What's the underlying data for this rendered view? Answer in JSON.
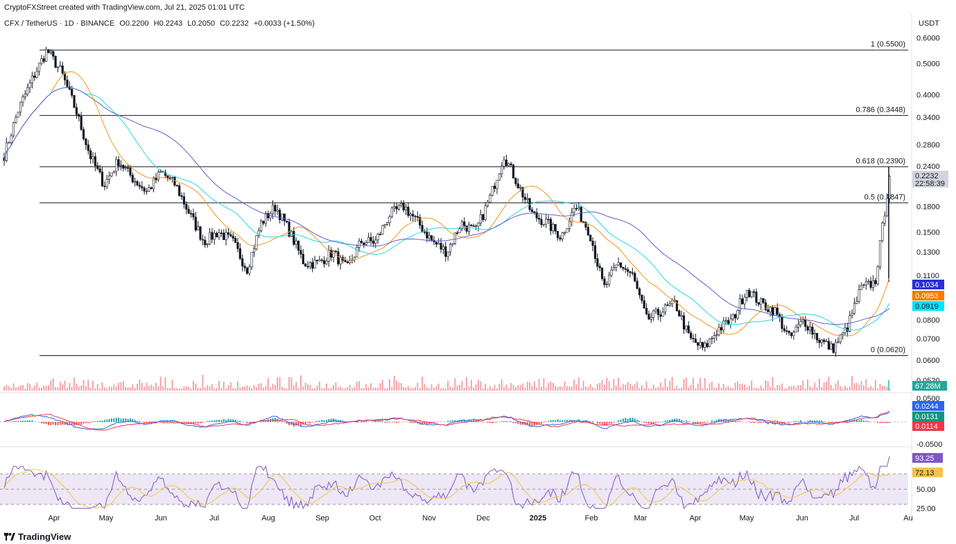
{
  "header": {
    "credit": "CryptoFXStreet created with TradingView.com, Jul 21, 2025 01:01 UTC",
    "symbol": "CFX / TetherUS · 1D · BINANCE",
    "open": "O0.2200",
    "high": "H0.2243",
    "low": "L0.2050",
    "close": "C0.2232",
    "change": "+0.0033 (+1.50%)",
    "currency": "USDT"
  },
  "footer": {
    "brand": "TradingView"
  },
  "colors": {
    "candle": "#131722",
    "ma_blue": "#5b5fd6",
    "ma_orange": "#f7931a",
    "ma_cyan": "#26d7e6",
    "fib": "#131722",
    "volume": "#f2a3a8",
    "macd_line": "#2962ff",
    "signal_line": "#f23645",
    "rsi_line": "#7e57c2",
    "rsi_ma": "#f5c542",
    "rsi_band": "#ede7f6"
  },
  "chart_data": {
    "type": "candlestick",
    "title": "CFX / TetherUS · 1D · BINANCE",
    "y_scale": "log",
    "y_ticks": [
      "0.6000",
      "0.5000",
      "0.4000",
      "0.3400",
      "0.2800",
      "0.2400",
      "0.1800",
      "0.1500",
      "0.1300",
      "0.1100",
      "0.0800",
      "0.0700",
      "0.0600",
      "0.0520"
    ],
    "x_ticks": [
      "Apr",
      "May",
      "Jun",
      "Jul",
      "Aug",
      "Sep",
      "Oct",
      "Nov",
      "Dec",
      "2025",
      "Feb",
      "Mar",
      "Apr",
      "May",
      "Jun",
      "Jul",
      "Au"
    ],
    "fib_levels": [
      {
        "label": "1 (0.5500)",
        "value": 0.55
      },
      {
        "label": "0.786 (0.3448)",
        "value": 0.3448
      },
      {
        "label": "0.618 (0.2390)",
        "value": 0.239
      },
      {
        "label": "0.5 (0.1847)",
        "value": 0.1847
      },
      {
        "label": "0 (0.0620)",
        "value": 0.062
      }
    ],
    "price_path": [
      [
        "Mar",
        0.26
      ],
      [
        "Mar",
        0.36
      ],
      [
        "Mar",
        0.45
      ],
      [
        "Mar",
        0.55
      ],
      [
        "Apr",
        0.47
      ],
      [
        "Apr",
        0.36
      ],
      [
        "Apr",
        0.26
      ],
      [
        "Apr",
        0.21
      ],
      [
        "Apr",
        0.25
      ],
      [
        "May",
        0.22
      ],
      [
        "May",
        0.2
      ],
      [
        "May",
        0.23
      ],
      [
        "Jun",
        0.21
      ],
      [
        "Jun",
        0.17
      ],
      [
        "Jun",
        0.14
      ],
      [
        "Jun",
        0.15
      ],
      [
        "Jul",
        0.14
      ],
      [
        "Jul",
        0.115
      ],
      [
        "Jul",
        0.16
      ],
      [
        "Jul",
        0.18
      ],
      [
        "Aug",
        0.15
      ],
      [
        "Aug",
        0.12
      ],
      [
        "Aug",
        0.12
      ],
      [
        "Aug",
        0.13
      ],
      [
        "Sep",
        0.115
      ],
      [
        "Sep",
        0.14
      ],
      [
        "Sep",
        0.14
      ],
      [
        "Oct",
        0.17
      ],
      [
        "Oct",
        0.18
      ],
      [
        "Oct",
        0.16
      ],
      [
        "Oct",
        0.14
      ],
      [
        "Nov",
        0.13
      ],
      [
        "Nov",
        0.16
      ],
      [
        "Nov",
        0.15
      ],
      [
        "Nov",
        0.19
      ],
      [
        "Dec",
        0.26
      ],
      [
        "Dec",
        0.21
      ],
      [
        "Dec",
        0.17
      ],
      [
        "Dec",
        0.16
      ],
      [
        "2025",
        0.145
      ],
      [
        "2025",
        0.18
      ],
      [
        "2025",
        0.15
      ],
      [
        "Feb",
        0.1
      ],
      [
        "Feb",
        0.12
      ],
      [
        "Feb",
        0.11
      ],
      [
        "Mar",
        0.08
      ],
      [
        "Mar",
        0.085
      ],
      [
        "Mar",
        0.09
      ],
      [
        "Apr",
        0.07
      ],
      [
        "Apr",
        0.065
      ],
      [
        "Apr",
        0.075
      ],
      [
        "Apr",
        0.08
      ],
      [
        "May",
        0.1
      ],
      [
        "May",
        0.09
      ],
      [
        "May",
        0.085
      ],
      [
        "Jun",
        0.07
      ],
      [
        "Jun",
        0.08
      ],
      [
        "Jun",
        0.07
      ],
      [
        "Jun",
        0.065
      ],
      [
        "Jul",
        0.075
      ],
      [
        "Jul",
        0.1
      ],
      [
        "Jul",
        0.105
      ],
      [
        "Jul",
        0.2232
      ]
    ],
    "last_price": {
      "value": "0.2232",
      "countdown": "22:58:39"
    },
    "ma_labels": [
      {
        "value": "0.1034",
        "color": "#2a2ed8"
      },
      {
        "value": "0.0953",
        "color": "#f57c00"
      },
      {
        "value": "0.0919",
        "color": "#00e5ff"
      }
    ],
    "volume": {
      "last": "67.28M"
    },
    "macd": {
      "y_ticks": [
        "0.0500",
        "-0.0500"
      ],
      "values": [
        {
          "value": "0.0244",
          "color": "#2962ff"
        },
        {
          "value": "0.0131",
          "color": "#089981"
        },
        {
          "value": "0.0114",
          "color": "#f23645"
        }
      ]
    },
    "rsi": {
      "y_ticks": [
        "50.00",
        "25.00"
      ],
      "values": [
        {
          "value": "93.25",
          "color": "#7e57c2"
        },
        {
          "value": "72.13",
          "color": "#f5c542"
        }
      ]
    }
  }
}
